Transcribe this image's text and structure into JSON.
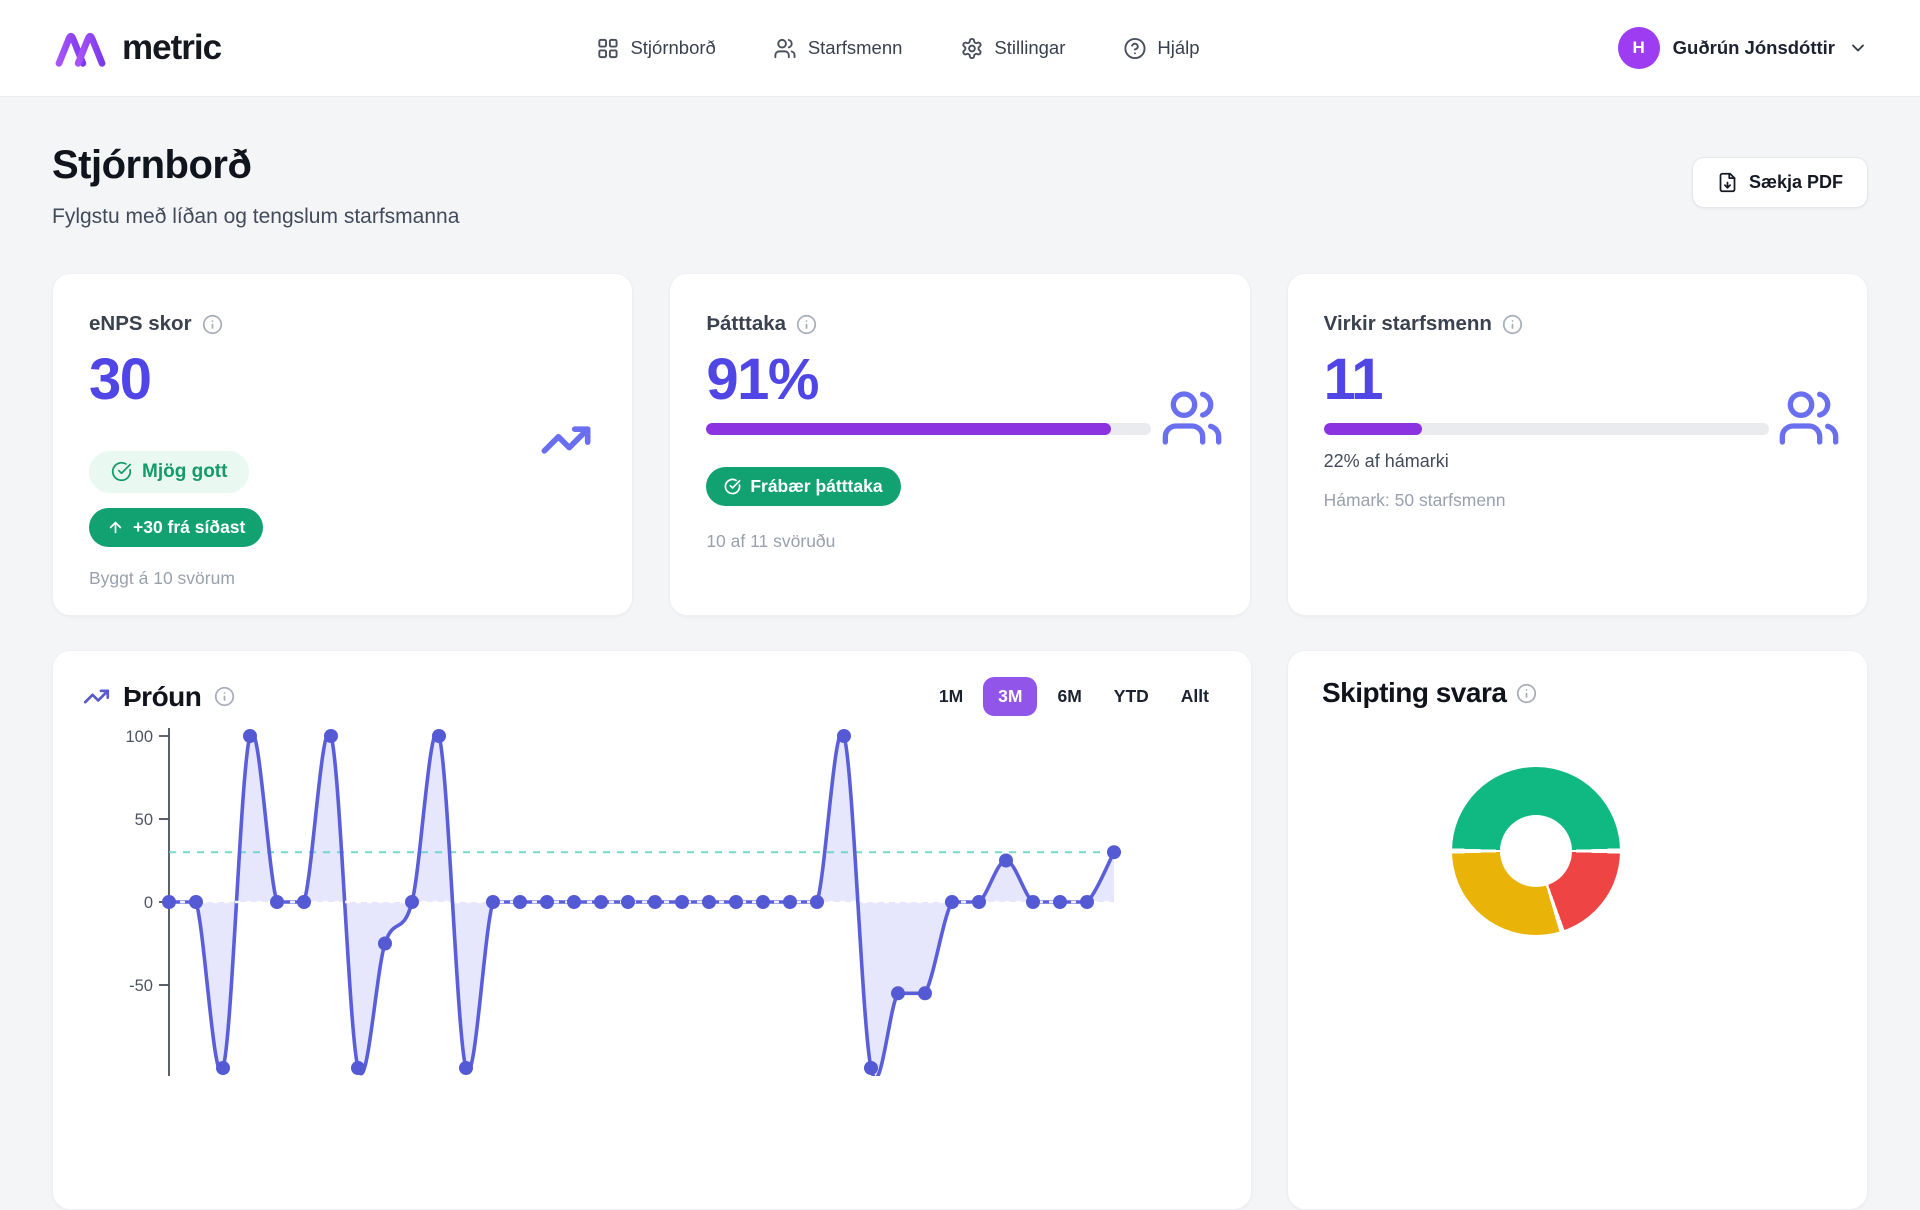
{
  "header": {
    "brand": "metric",
    "nav": [
      {
        "label": "Stjórnborð"
      },
      {
        "label": "Starfsmenn"
      },
      {
        "label": "Stillingar"
      },
      {
        "label": "Hjálp"
      }
    ],
    "user": {
      "initial": "H",
      "name": "Guðrún Jónsdóttir"
    }
  },
  "page": {
    "title": "Stjórnborð",
    "subtitle": "Fylgstu með líðan og tengslum starfsmanna",
    "download_button": "Sækja PDF"
  },
  "stats": {
    "enps": {
      "title": "eNPS skor",
      "value": "30",
      "rating_badge": "Mjög gott",
      "change_badge": "+30 frá síðast",
      "caption": "Byggt á 10 svörum"
    },
    "participation": {
      "title": "Þátttaka",
      "value": "91%",
      "progress_pct": 91,
      "badge": "Frábær þátttaka",
      "caption": "10 af 11 svöruðu"
    },
    "active_employees": {
      "title": "Virkir starfsmenn",
      "value": "11",
      "progress_pct": 22,
      "progress_label": "22% af hámarki",
      "caption": "Hámark: 50 starfsmenn"
    }
  },
  "trend": {
    "title": "Þróun",
    "ranges": [
      "1M",
      "3M",
      "6M",
      "YTD",
      "Allt"
    ],
    "active_range": "3M"
  },
  "distribution": {
    "title": "Skipting svara"
  },
  "chart_data": [
    {
      "type": "line",
      "title": "Þróun",
      "series": [
        {
          "name": "eNPS",
          "values": [
            0,
            0,
            -100,
            100,
            0,
            0,
            100,
            -100,
            -25,
            0,
            100,
            -100,
            0,
            0,
            0,
            0,
            0,
            0,
            0,
            0,
            0,
            0,
            0,
            0,
            0,
            100,
            -100,
            -55,
            -55,
            0,
            0,
            25,
            0,
            0,
            0,
            30
          ]
        }
      ],
      "ylim": [
        -100,
        100
      ],
      "yticks": [
        100,
        50,
        0,
        -50
      ],
      "reference_line": 30,
      "legend": "none"
    },
    {
      "type": "pie",
      "title": "Skipting svara",
      "donut": true,
      "start_css_angle_deg": 270,
      "segments": [
        {
          "name": "green",
          "pct": 50,
          "color": "#10b981"
        },
        {
          "name": "red",
          "pct": 20,
          "color": "#ef4444"
        },
        {
          "name": "amber",
          "pct": 30,
          "color": "#eab308"
        }
      ]
    }
  ],
  "colors": {
    "accent_indigo": "#4f46e5",
    "chart_line": "#5a5ed8",
    "chart_dot": "#5459d4",
    "chart_area": "rgba(99,102,241,0.16)",
    "reference_teal": "#5fd4c4",
    "progress_purple": "#8b33e0",
    "active_pill_purple": "#9155ea",
    "green": "#12a170",
    "green_badge_bg": "#e9f8f1",
    "green_badge_text": "#169a6b",
    "donut_green": "#10b981",
    "donut_red": "#ef4444",
    "donut_amber": "#eab308"
  }
}
